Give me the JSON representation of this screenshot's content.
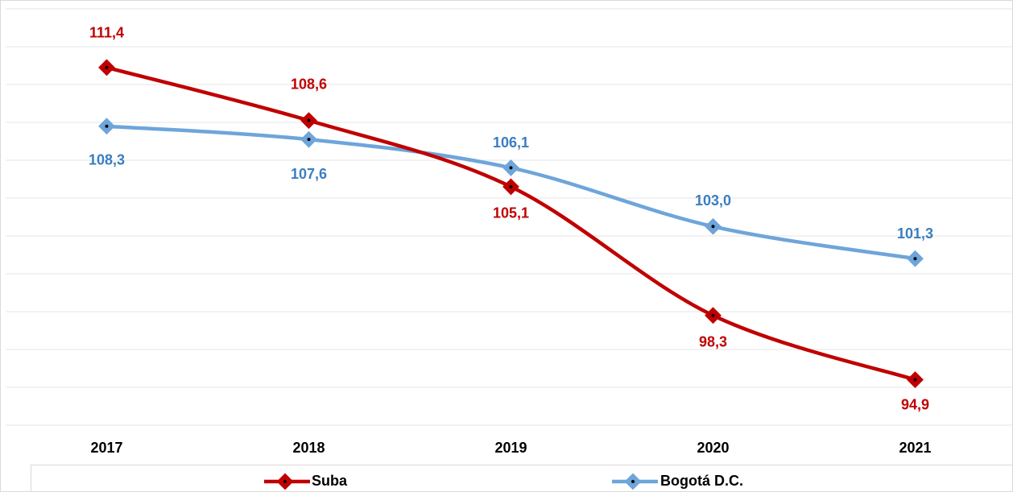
{
  "chart_data": {
    "type": "line",
    "categories": [
      "2017",
      "2018",
      "2019",
      "2020",
      "2021"
    ],
    "series": [
      {
        "name": "Suba",
        "color": "#c00000",
        "values": [
          111.4,
          108.6,
          105.1,
          98.3,
          94.9
        ],
        "value_labels": [
          "111,4",
          "108,6",
          "105,1",
          "98,3",
          "94,9"
        ]
      },
      {
        "name": "Bogotá D.C.",
        "color": "#6ea5da",
        "values": [
          108.3,
          107.6,
          106.1,
          103.0,
          101.3
        ],
        "value_labels": [
          "108,3",
          "107,6",
          "106,1",
          "103,0",
          "101,3"
        ]
      }
    ],
    "ylim": [
      92.5,
      114.5
    ],
    "yticks": [
      92.5,
      94.5,
      96.5,
      98.5,
      100.5,
      102.5,
      104.5,
      106.5,
      108.5,
      110.5,
      112.5,
      114.5
    ],
    "grid": true,
    "smooth": true,
    "legend": "bottom"
  }
}
